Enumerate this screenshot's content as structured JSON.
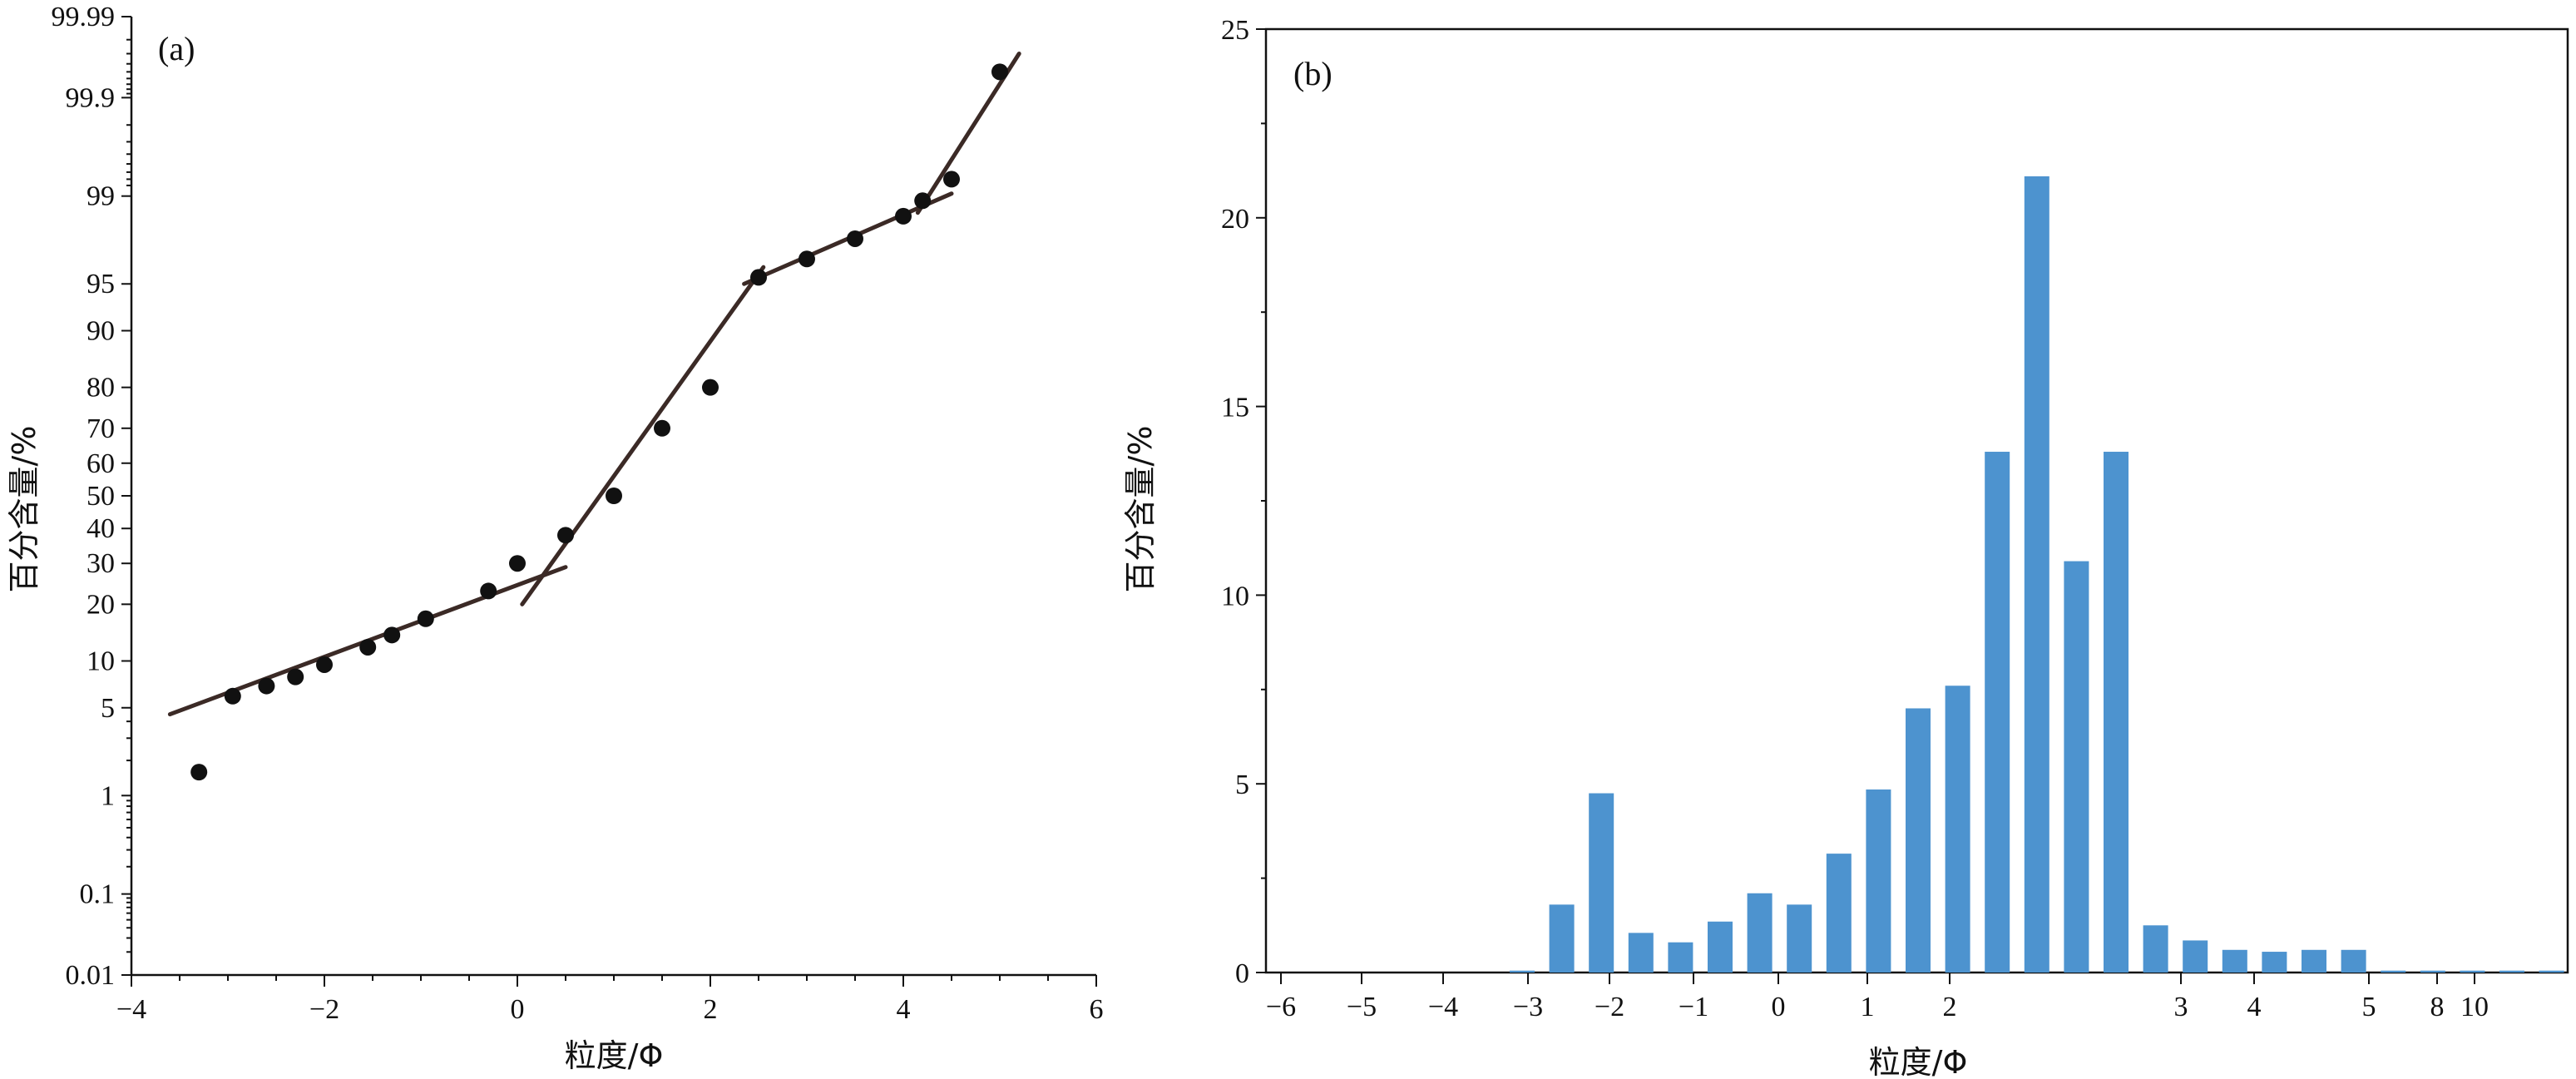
{
  "chart_data": [
    {
      "type": "scatter",
      "panel_label": "(a)",
      "xlabel": "粒度/Φ",
      "ylabel": "百分含量/%",
      "xlim": [
        -4,
        6
      ],
      "x_ticks": [
        -4,
        -2,
        0,
        2,
        4,
        6
      ],
      "x_tick_labels": [
        "−4",
        "−2",
        "0",
        "2",
        "4",
        "6"
      ],
      "y_scale": "probability",
      "y_ticks": [
        0.01,
        0.1,
        1,
        5,
        10,
        20,
        30,
        40,
        50,
        60,
        70,
        80,
        90,
        95,
        99,
        99.9,
        99.99
      ],
      "y_tick_labels": [
        "0.01",
        "0.1",
        "1",
        "5",
        "10",
        "20",
        "30",
        "40",
        "50",
        "60",
        "70",
        "80",
        "90",
        "95",
        "99",
        "99.9",
        "99.99"
      ],
      "points": [
        {
          "x": -3.3,
          "y": 1.6
        },
        {
          "x": -2.95,
          "y": 6
        },
        {
          "x": -2.6,
          "y": 7
        },
        {
          "x": -2.3,
          "y": 8
        },
        {
          "x": -2.0,
          "y": 9.5
        },
        {
          "x": -1.55,
          "y": 12
        },
        {
          "x": -1.3,
          "y": 14
        },
        {
          "x": -0.95,
          "y": 17
        },
        {
          "x": -0.3,
          "y": 23
        },
        {
          "x": 0.0,
          "y": 30
        },
        {
          "x": 0.5,
          "y": 38
        },
        {
          "x": 1.0,
          "y": 50
        },
        {
          "x": 1.5,
          "y": 70
        },
        {
          "x": 2.0,
          "y": 80
        },
        {
          "x": 2.5,
          "y": 95.5
        },
        {
          "x": 3.0,
          "y": 96.7
        },
        {
          "x": 3.5,
          "y": 97.7
        },
        {
          "x": 4.0,
          "y": 98.5
        },
        {
          "x": 4.2,
          "y": 98.9
        },
        {
          "x": 4.5,
          "y": 99.3
        },
        {
          "x": 5.0,
          "y": 99.95
        }
      ],
      "fit_lines": [
        {
          "x": [
            -3.6,
            0.5
          ],
          "y": [
            4.5,
            29
          ]
        },
        {
          "x": [
            0.05,
            2.55
          ],
          "y": [
            20,
            96.2
          ]
        },
        {
          "x": [
            2.35,
            4.5
          ],
          "y": [
            95,
            99.05
          ]
        },
        {
          "x": [
            4.15,
            5.2
          ],
          "y": [
            98.6,
            99.97
          ]
        }
      ]
    },
    {
      "type": "bar",
      "panel_label": "(b)",
      "xlabel": "粒度/Φ",
      "ylabel": "百分含量/%",
      "ylim": [
        0,
        25
      ],
      "y_ticks": [
        0,
        5,
        10,
        15,
        20,
        25
      ],
      "x_tick_labels": [
        "−6",
        "−5",
        "−4",
        "−3",
        "−2",
        "−1",
        "0",
        "1",
        "2",
        "3",
        "4",
        "5",
        "8",
        "10"
      ],
      "values": [
        0.05,
        1.8,
        4.75,
        1.05,
        0.8,
        1.35,
        2.1,
        1.8,
        3.15,
        4.85,
        7.0,
        7.6,
        13.8,
        21.1,
        10.9,
        13.8,
        1.25,
        0.85,
        0.6,
        0.55,
        0.6,
        0.6,
        0.05,
        0.05,
        0.05,
        0.05,
        0.05,
        0.05
      ]
    }
  ]
}
